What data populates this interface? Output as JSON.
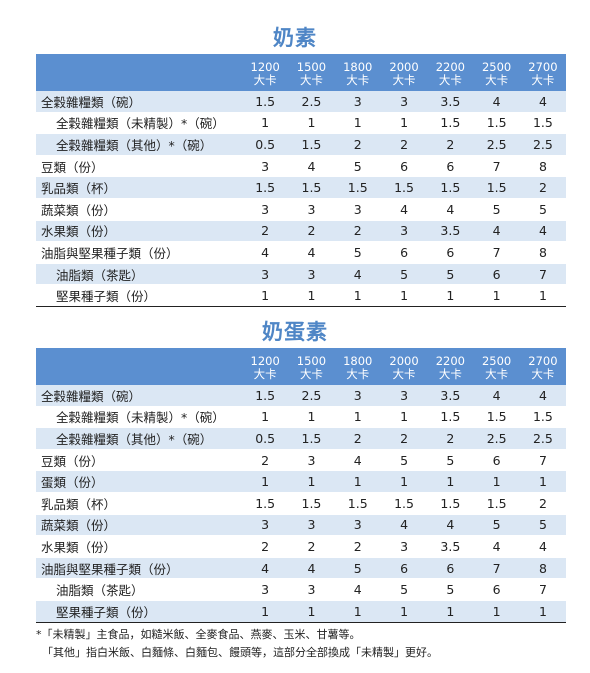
{
  "headers": [
    "1200\n大卡",
    "1500\n大卡",
    "1800\n大卡",
    "2000\n大卡",
    "2200\n大卡",
    "2500\n大卡",
    "2700\n大卡"
  ],
  "header_cals": [
    "1200",
    "1500",
    "1800",
    "2000",
    "2200",
    "2500",
    "2700"
  ],
  "header_unit": "大卡",
  "tables": [
    {
      "title": "奶素",
      "rows": [
        {
          "label": "全穀雜糧類（碗）",
          "sub": false,
          "values": [
            "1.5",
            "2.5",
            "3",
            "3",
            "3.5",
            "4",
            "4"
          ]
        },
        {
          "label": "全穀雜糧類（未精製）*（碗）",
          "sub": true,
          "values": [
            "1",
            "1",
            "1",
            "1",
            "1.5",
            "1.5",
            "1.5"
          ]
        },
        {
          "label": "全穀雜糧類（其他）*（碗）",
          "sub": true,
          "values": [
            "0.5",
            "1.5",
            "2",
            "2",
            "2",
            "2.5",
            "2.5"
          ]
        },
        {
          "label": "豆類（份）",
          "sub": false,
          "values": [
            "3",
            "4",
            "5",
            "6",
            "6",
            "7",
            "8"
          ]
        },
        {
          "label": "乳品類（杯）",
          "sub": false,
          "values": [
            "1.5",
            "1.5",
            "1.5",
            "1.5",
            "1.5",
            "1.5",
            "2"
          ]
        },
        {
          "label": "蔬菜類（份）",
          "sub": false,
          "values": [
            "3",
            "3",
            "3",
            "4",
            "4",
            "5",
            "5"
          ]
        },
        {
          "label": "水果類（份）",
          "sub": false,
          "values": [
            "2",
            "2",
            "2",
            "3",
            "3.5",
            "4",
            "4"
          ]
        },
        {
          "label": "油脂與堅果種子類（份）",
          "sub": false,
          "values": [
            "4",
            "4",
            "5",
            "6",
            "6",
            "7",
            "8"
          ]
        },
        {
          "label": "油脂類（茶匙）",
          "sub": true,
          "values": [
            "3",
            "3",
            "4",
            "5",
            "5",
            "6",
            "7"
          ]
        },
        {
          "label": "堅果種子類（份）",
          "sub": true,
          "values": [
            "1",
            "1",
            "1",
            "1",
            "1",
            "1",
            "1"
          ]
        }
      ]
    },
    {
      "title": "奶蛋素",
      "rows": [
        {
          "label": "全穀雜糧類（碗）",
          "sub": false,
          "values": [
            "1.5",
            "2.5",
            "3",
            "3",
            "3.5",
            "4",
            "4"
          ]
        },
        {
          "label": "全穀雜糧類（未精製）*（碗）",
          "sub": true,
          "values": [
            "1",
            "1",
            "1",
            "1",
            "1.5",
            "1.5",
            "1.5"
          ]
        },
        {
          "label": "全穀雜糧類（其他）*（碗）",
          "sub": true,
          "values": [
            "0.5",
            "1.5",
            "2",
            "2",
            "2",
            "2.5",
            "2.5"
          ]
        },
        {
          "label": "豆類（份）",
          "sub": false,
          "values": [
            "2",
            "3",
            "4",
            "5",
            "5",
            "6",
            "7"
          ]
        },
        {
          "label": "蛋類（份）",
          "sub": false,
          "values": [
            "1",
            "1",
            "1",
            "1",
            "1",
            "1",
            "1"
          ]
        },
        {
          "label": "乳品類（杯）",
          "sub": false,
          "values": [
            "1.5",
            "1.5",
            "1.5",
            "1.5",
            "1.5",
            "1.5",
            "2"
          ]
        },
        {
          "label": "蔬菜類（份）",
          "sub": false,
          "values": [
            "3",
            "3",
            "3",
            "4",
            "4",
            "5",
            "5"
          ]
        },
        {
          "label": "水果類（份）",
          "sub": false,
          "values": [
            "2",
            "2",
            "2",
            "3",
            "3.5",
            "4",
            "4"
          ]
        },
        {
          "label": "油脂與堅果種子類（份）",
          "sub": false,
          "values": [
            "4",
            "4",
            "5",
            "6",
            "6",
            "7",
            "8"
          ]
        },
        {
          "label": "油脂類（茶匙）",
          "sub": true,
          "values": [
            "3",
            "3",
            "4",
            "5",
            "5",
            "6",
            "7"
          ]
        },
        {
          "label": "堅果種子類（份）",
          "sub": true,
          "values": [
            "1",
            "1",
            "1",
            "1",
            "1",
            "1",
            "1"
          ]
        }
      ]
    }
  ],
  "footnotes": [
    "*「未精製」主食品，如糙米飯、全麥食品、燕麥、玉米、甘薯等。",
    "「其他」指白米飯、白麵條、白麵包、饅頭等，這部分全部換成「未精製」更好。"
  ],
  "colors": {
    "title": "#4f86c6",
    "header_bg": "#5b8fd0",
    "row_shade": "#dbe7f4"
  }
}
